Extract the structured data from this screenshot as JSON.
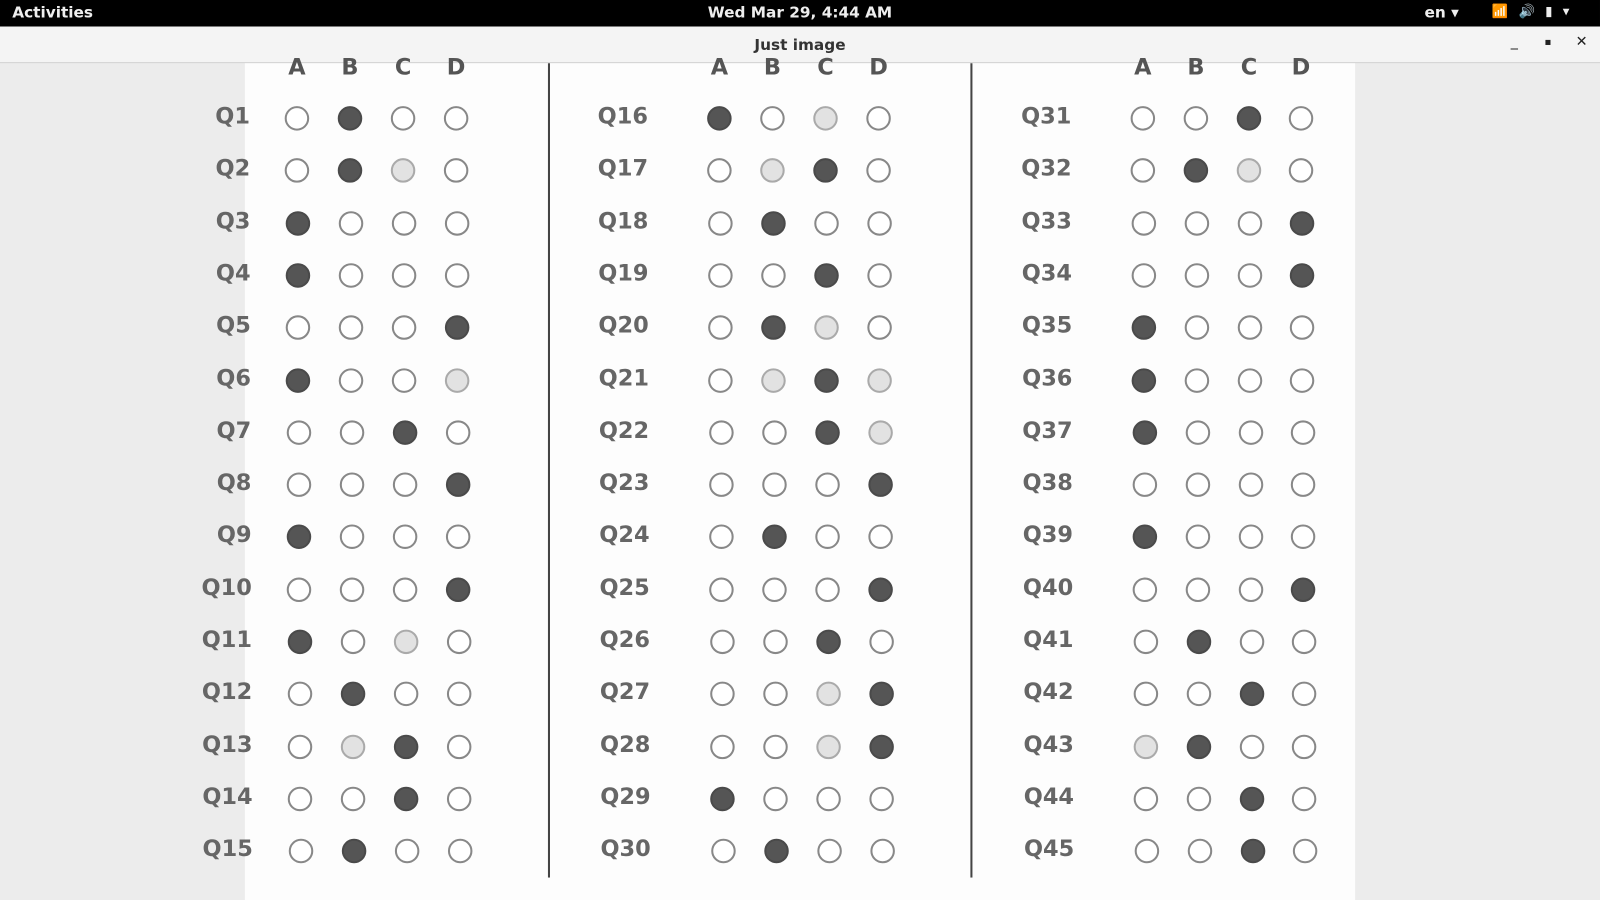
{
  "topbar": {
    "activities": "Activities",
    "clock": "Wed Mar 29,  4:44 AM",
    "language": "en",
    "icons": [
      "wifi-icon",
      "volume-icon",
      "battery-icon",
      "chevron-down-icon"
    ]
  },
  "window": {
    "title": "Just image",
    "controls": [
      "minimize",
      "maximize",
      "close"
    ]
  },
  "sheet": {
    "choices": [
      "A",
      "B",
      "C",
      "D"
    ],
    "columns": [
      {
        "questions": [
          {
            "label": "Q1",
            "marked": "B",
            "faint": []
          },
          {
            "label": "Q2",
            "marked": "B",
            "faint": [
              "C"
            ]
          },
          {
            "label": "Q3",
            "marked": "A",
            "faint": []
          },
          {
            "label": "Q4",
            "marked": "A",
            "faint": []
          },
          {
            "label": "Q5",
            "marked": "D",
            "faint": []
          },
          {
            "label": "Q6",
            "marked": "A",
            "faint": [
              "D"
            ]
          },
          {
            "label": "Q7",
            "marked": "C",
            "faint": []
          },
          {
            "label": "Q8",
            "marked": "D",
            "faint": []
          },
          {
            "label": "Q9",
            "marked": "A",
            "faint": []
          },
          {
            "label": "Q10",
            "marked": "D",
            "faint": []
          },
          {
            "label": "Q11",
            "marked": "A",
            "faint": [
              "C"
            ]
          },
          {
            "label": "Q12",
            "marked": "B",
            "faint": []
          },
          {
            "label": "Q13",
            "marked": "C",
            "faint": [
              "B"
            ]
          },
          {
            "label": "Q14",
            "marked": "C",
            "faint": []
          },
          {
            "label": "Q15",
            "marked": "B",
            "faint": []
          }
        ]
      },
      {
        "questions": [
          {
            "label": "Q16",
            "marked": "A",
            "faint": [
              "C"
            ]
          },
          {
            "label": "Q17",
            "marked": "C",
            "faint": [
              "B"
            ]
          },
          {
            "label": "Q18",
            "marked": "B",
            "faint": []
          },
          {
            "label": "Q19",
            "marked": "C",
            "faint": []
          },
          {
            "label": "Q20",
            "marked": "B",
            "faint": [
              "C"
            ]
          },
          {
            "label": "Q21",
            "marked": "C",
            "faint": [
              "B",
              "D"
            ]
          },
          {
            "label": "Q22",
            "marked": "C",
            "faint": [
              "D"
            ]
          },
          {
            "label": "Q23",
            "marked": "D",
            "faint": []
          },
          {
            "label": "Q24",
            "marked": "B",
            "faint": []
          },
          {
            "label": "Q25",
            "marked": "D",
            "faint": []
          },
          {
            "label": "Q26",
            "marked": "C",
            "faint": []
          },
          {
            "label": "Q27",
            "marked": "D",
            "faint": [
              "C"
            ]
          },
          {
            "label": "Q28",
            "marked": "D",
            "faint": [
              "C"
            ]
          },
          {
            "label": "Q29",
            "marked": "A",
            "faint": []
          },
          {
            "label": "Q30",
            "marked": "B",
            "faint": []
          }
        ]
      },
      {
        "questions": [
          {
            "label": "Q31",
            "marked": "C",
            "faint": []
          },
          {
            "label": "Q32",
            "marked": "B",
            "faint": [
              "C"
            ]
          },
          {
            "label": "Q33",
            "marked": "D",
            "faint": []
          },
          {
            "label": "Q34",
            "marked": "D",
            "faint": []
          },
          {
            "label": "Q35",
            "marked": "A",
            "faint": []
          },
          {
            "label": "Q36",
            "marked": "A",
            "faint": []
          },
          {
            "label": "Q37",
            "marked": "A",
            "faint": []
          },
          {
            "label": "Q38",
            "marked": "",
            "faint": []
          },
          {
            "label": "Q39",
            "marked": "A",
            "faint": []
          },
          {
            "label": "Q40",
            "marked": "D",
            "faint": []
          },
          {
            "label": "Q41",
            "marked": "B",
            "faint": []
          },
          {
            "label": "Q42",
            "marked": "C",
            "faint": []
          },
          {
            "label": "Q43",
            "marked": "B",
            "faint": [
              "A"
            ]
          },
          {
            "label": "Q44",
            "marked": "C",
            "faint": []
          },
          {
            "label": "Q45",
            "marked": "C",
            "faint": []
          }
        ]
      }
    ]
  }
}
